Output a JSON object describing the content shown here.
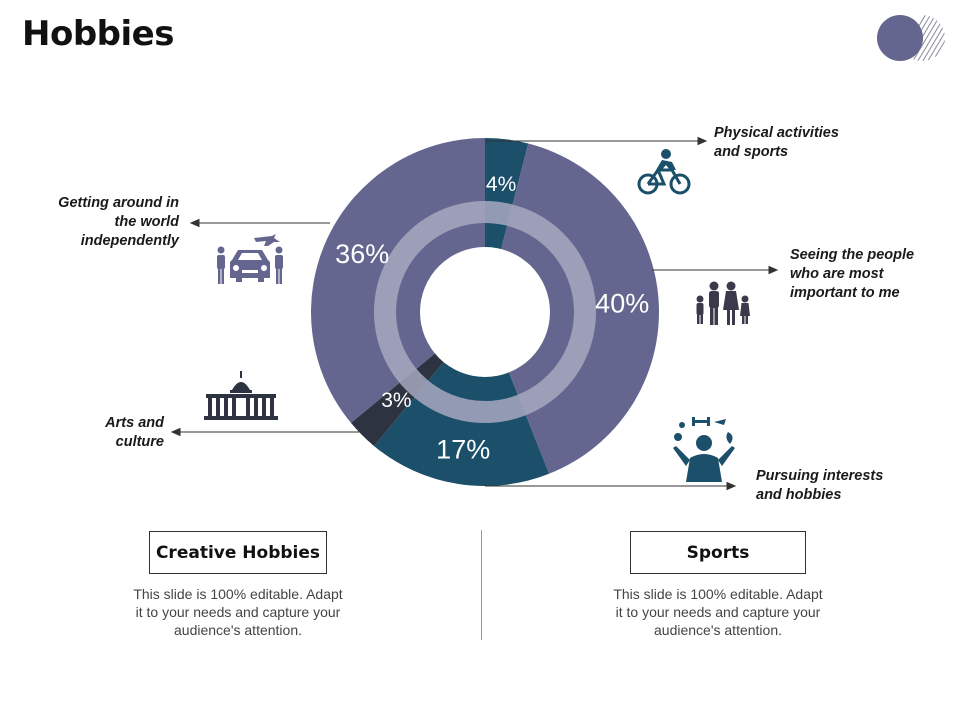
{
  "title": "Hobbies",
  "colors": {
    "purple": "#65668f",
    "teal": "#1c4f6a",
    "dark": "#2d3340",
    "ring": "#9b9cb6",
    "label_text": "#ffffff"
  },
  "chart_data": {
    "type": "pie",
    "donut": true,
    "title": "",
    "slices": [
      {
        "label": "Physical activities and sports",
        "value": 4,
        "display": "4%",
        "color": "#1c4f6a"
      },
      {
        "label": "Seeing the people who are most important to me",
        "value": 40,
        "display": "40%",
        "color": "#65668f"
      },
      {
        "label": "Pursuing interests and hobbies",
        "value": 17,
        "display": "17%",
        "color": "#1c4f6a"
      },
      {
        "label": "Arts and culture",
        "value": 3,
        "display": "3%",
        "color": "#2d3340"
      },
      {
        "label": "Getting around in the world independently",
        "value": 36,
        "display": "36%",
        "color": "#65668f"
      }
    ]
  },
  "callouts": {
    "physical": [
      "Physical activities",
      "and sports"
    ],
    "seeing": [
      "Seeing the people",
      "who are most",
      "important to me"
    ],
    "pursuing": [
      "Pursuing interests",
      "and hobbies"
    ],
    "arts": [
      "Arts and",
      "culture"
    ],
    "getting": [
      "Getting around in",
      "the world",
      "independently"
    ]
  },
  "icons": {
    "physical": "cyclist-icon",
    "seeing": "family-icon",
    "pursuing": "juggling-person-icon",
    "arts": "capitol-building-icon",
    "getting": "car-travel-icon"
  },
  "bottom": {
    "left": {
      "heading": "Creative Hobbies",
      "body": [
        "This slide is 100% editable. Adapt",
        "it to your needs and capture your",
        "audience's attention."
      ]
    },
    "right": {
      "heading": "Sports",
      "body": [
        "This slide is 100% editable. Adapt",
        "it to your needs and capture your",
        "audience's attention."
      ]
    }
  }
}
